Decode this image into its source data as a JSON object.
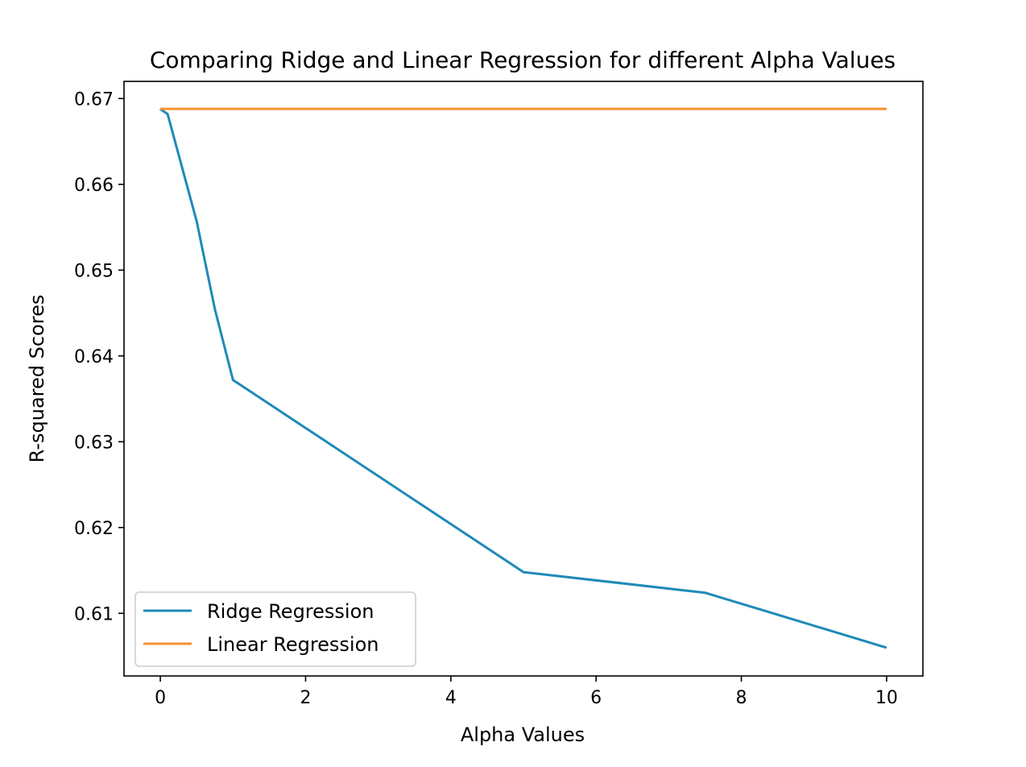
{
  "chart_data": {
    "type": "line",
    "title": "Comparing Ridge and Linear Regression for different Alpha Values",
    "xlabel": "Alpha Values",
    "ylabel": "R-squared Scores",
    "xlim": [
      -0.5,
      10.5
    ],
    "ylim": [
      0.6027,
      0.672
    ],
    "x_ticks": [
      0,
      2,
      4,
      6,
      8,
      10
    ],
    "x_tick_labels": [
      "0",
      "2",
      "4",
      "6",
      "8",
      "10"
    ],
    "y_ticks": [
      0.61,
      0.62,
      0.63,
      0.64,
      0.65,
      0.66,
      0.67
    ],
    "y_tick_labels": [
      "0.61",
      "0.62",
      "0.63",
      "0.64",
      "0.65",
      "0.66",
      "0.67"
    ],
    "grid": false,
    "legend_position": "lower-left",
    "series": [
      {
        "name": "Ridge Regression",
        "color": "#1f8ab8",
        "x": [
          0,
          0.01,
          0.1,
          0.5,
          0.75,
          1,
          5,
          7.5,
          10
        ],
        "y": [
          0.6688,
          0.6687,
          0.6682,
          0.6557,
          0.6455,
          0.6372,
          0.6148,
          0.6124,
          0.606
        ]
      },
      {
        "name": "Linear Regression",
        "color": "#f5922f",
        "x": [
          0,
          0.01,
          0.1,
          0.5,
          0.75,
          1,
          5,
          7.5,
          10
        ],
        "y": [
          0.6688,
          0.6688,
          0.6688,
          0.6688,
          0.6688,
          0.6688,
          0.6688,
          0.6688,
          0.6688
        ]
      }
    ]
  }
}
